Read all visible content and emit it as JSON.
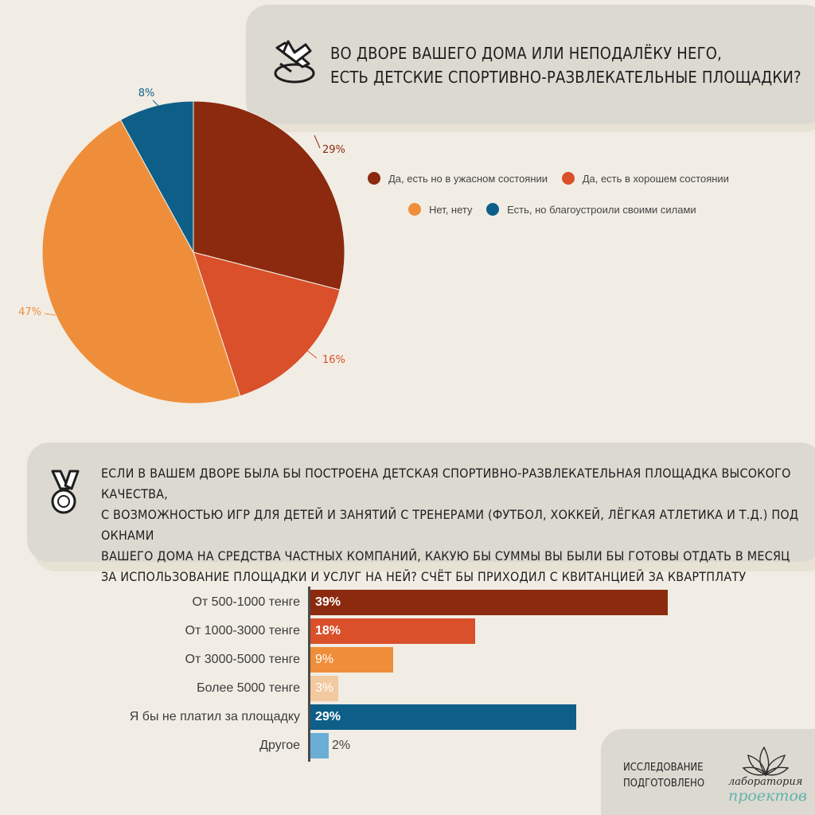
{
  "question1": {
    "title_line1": "Во дворе вашего дома или неподалёку него,",
    "title_line2": "есть детские спортивно-развлекательные площадки?",
    "icon": "skates-icon"
  },
  "question2": {
    "title_line1": "Если в вашем дворе была бы построена детская спортивно-развлекательная площадка высокого качества,",
    "title_line2": "с возможностью игр для детей и занятий с тренерами (футбол, хоккей, лёгкая атлетика и т.д.) под окнами",
    "title_line3": "вашего дома на средства частных компаний, какую бы суммы вы были бы готовы отдать в месяц",
    "title_line4": "за использование площадки и услуг на ней? Счёт бы приходил с квитанцией за квартплату",
    "icon": "medal-icon"
  },
  "chart_data": [
    {
      "type": "pie",
      "labels": [
        "Да, есть но в ужасном состоянии",
        "Да, есть в хорошем состоянии",
        "Нет, нету",
        "Есть, но благоустроили своими силами"
      ],
      "values": [
        29,
        16,
        47,
        8
      ],
      "value_labels": [
        "29%",
        "16%",
        "47%",
        "8%"
      ],
      "colors": [
        "#8b2a0e",
        "#d9502a",
        "#ef8e3a",
        "#0e5f88"
      ],
      "legend_position": "right"
    },
    {
      "type": "bar",
      "orientation": "horizontal",
      "categories": [
        "От 500-1000 тенге",
        "От 1000-3000 тенге",
        "От 3000-5000 тенге",
        "Более 5000 тенге",
        "Я бы не платил за площадку",
        "Другое"
      ],
      "values": [
        39,
        18,
        9,
        3,
        29,
        2
      ],
      "value_labels": [
        "39%",
        "18%",
        "9%",
        "3%",
        "29%",
        "2%"
      ],
      "colors": [
        "#8b2a0e",
        "#d9502a",
        "#ef8e3a",
        "#f3c9a0",
        "#0e5f88",
        "#6aaed6"
      ],
      "value_label_colors": [
        "#ffffff",
        "#ffffff",
        "#ffffff",
        "#ffffff",
        "#ffffff",
        "#444444"
      ],
      "value_label_bold": [
        true,
        true,
        false,
        false,
        true,
        false
      ],
      "xlim": [
        0,
        40
      ]
    }
  ],
  "credit": {
    "line1": "Исследование",
    "line2": "подготовлено",
    "logo_line1": "лаборатория",
    "logo_line2": "проектов",
    "logo_icon": "leaf-logo-icon"
  }
}
